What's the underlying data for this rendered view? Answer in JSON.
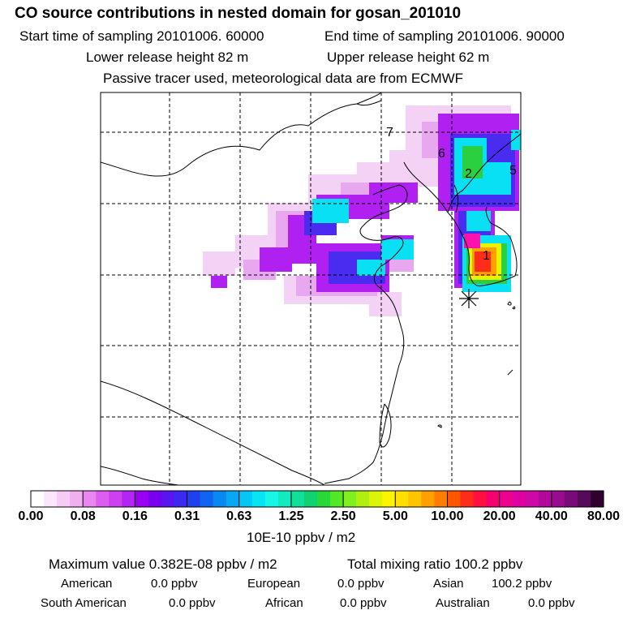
{
  "header": {
    "title": "CO  source contributions in nested domain for gosan_201010",
    "start_time": "Start time of sampling 20101006. 60000",
    "end_time": "End time of sampling 20101006. 90000",
    "lower_release": "Lower release height   82 m",
    "upper_release": "Upper release height   62 m",
    "passive_tracer": "Passive tracer used, meteorological data are from ECMWF"
  },
  "map": {
    "region_labels": [
      "1",
      "2",
      "5",
      "6",
      "7"
    ],
    "receptor_marker": "asterisk"
  },
  "colorbar": {
    "tick_labels": [
      "0.00",
      "0.08",
      "0.16",
      "0.31",
      "0.63",
      "1.25",
      "2.50",
      "5.00",
      "10.00",
      "20.00",
      "40.00",
      "80.00"
    ],
    "colors": [
      "#ffffff",
      "#fbe6fb",
      "#f6ccf6",
      "#f0b0f0",
      "#e986f0",
      "#dc5ef0",
      "#cc40f0",
      "#b325f2",
      "#9a00f2",
      "#7a00f0",
      "#5a14f0",
      "#3c28f0",
      "#2040f0",
      "#1064f0",
      "#0a88f2",
      "#08a8f4",
      "#06c6f6",
      "#08e4f4",
      "#18f6e8",
      "#10ecc0",
      "#10e09a",
      "#10d270",
      "#28d838",
      "#50e828",
      "#80f020",
      "#b0f010",
      "#dcf408",
      "#fff400",
      "#ffde00",
      "#ffc400",
      "#ffa000",
      "#ff7c00",
      "#ff5400",
      "#ff2c1a",
      "#ff1040",
      "#f60070",
      "#ee0090",
      "#de00a0",
      "#ce08a6",
      "#b4089c",
      "#980c90",
      "#7a0a7a",
      "#560a5a",
      "#300030"
    ],
    "unit": "10E-10 ppbv / m2"
  },
  "summary": {
    "maximum_value": "Maximum value  0.382E-08 ppbv / m2",
    "total_mixing_ratio": "Total mixing ratio      100.2 ppbv",
    "regions": [
      {
        "label": "American",
        "value": "0.0 ppbv"
      },
      {
        "label": "European",
        "value": "0.0 ppbv"
      },
      {
        "label": "Asian",
        "value": "100.2 ppbv"
      },
      {
        "label": "South American",
        "value": "0.0 ppbv"
      },
      {
        "label": "African",
        "value": "0.0 ppbv"
      },
      {
        "label": "Australian",
        "value": "0.0 ppbv"
      }
    ]
  }
}
